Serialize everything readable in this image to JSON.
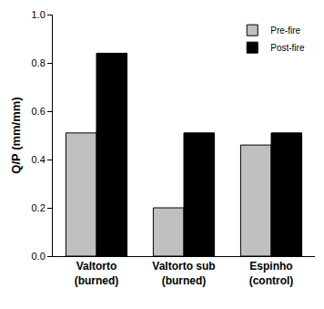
{
  "chart_data": {
    "type": "bar",
    "y_label": "Q/P (mm/mm)",
    "categories": [
      "Valtorto\n(burned)",
      "Valtorto sub\n(burned)",
      "Espinho\n(control)"
    ],
    "series": [
      {
        "name": "Pre-fire",
        "color": "#c0c0c0",
        "values": [
          0.51,
          0.2,
          0.46
        ]
      },
      {
        "name": "Post-fire",
        "color": "#000000",
        "values": [
          0.84,
          0.51,
          0.51
        ]
      }
    ],
    "ylim": [
      0,
      1.0
    ],
    "yticks": [
      {
        "value": 0,
        "label": "0.0"
      },
      0.2,
      0.4,
      0.6,
      0.8,
      {
        "value": 1.0,
        "label": "1.0"
      }
    ],
    "grid": false,
    "legend": "top-right"
  }
}
